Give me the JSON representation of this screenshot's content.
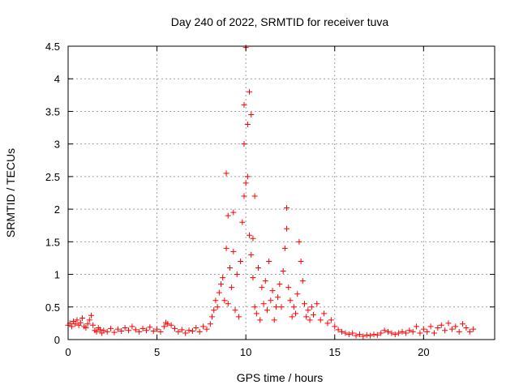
{
  "chart_data": {
    "type": "scatter",
    "title": "Day 240 of 2022, SRMTID for receiver tuva",
    "xlabel": "GPS time / hours",
    "ylabel": "SRMTID / TECUs",
    "xlim": [
      0,
      24
    ],
    "ylim": [
      0,
      4.5
    ],
    "x_ticks": [
      0,
      5,
      10,
      15,
      20
    ],
    "y_ticks": [
      0,
      0.5,
      1,
      1.5,
      2,
      2.5,
      3,
      3.5,
      4,
      4.5
    ],
    "x_tick_labels": [
      "0",
      "5",
      "10",
      "15",
      "20"
    ],
    "y_tick_labels": [
      "0",
      "0.5",
      "1",
      "1.5",
      "2",
      "2.5",
      "3",
      "3.5",
      "4",
      "4.5"
    ],
    "grid": true,
    "marker": "+",
    "series_color": "#ff0000",
    "series": [
      {
        "name": "SRMTID",
        "points": [
          [
            0.0,
            0.22
          ],
          [
            0.1,
            0.25
          ],
          [
            0.2,
            0.2
          ],
          [
            0.3,
            0.28
          ],
          [
            0.4,
            0.24
          ],
          [
            0.5,
            0.3
          ],
          [
            0.6,
            0.22
          ],
          [
            0.7,
            0.26
          ],
          [
            0.8,
            0.33
          ],
          [
            0.9,
            0.2
          ],
          [
            1.0,
            0.18
          ],
          [
            1.1,
            0.24
          ],
          [
            1.2,
            0.3
          ],
          [
            1.3,
            0.37
          ],
          [
            1.4,
            0.22
          ],
          [
            1.5,
            0.14
          ],
          [
            1.6,
            0.12
          ],
          [
            1.7,
            0.18
          ],
          [
            1.8,
            0.15
          ],
          [
            1.9,
            0.1
          ],
          [
            2.0,
            0.14
          ],
          [
            2.2,
            0.12
          ],
          [
            2.4,
            0.17
          ],
          [
            2.6,
            0.11
          ],
          [
            2.8,
            0.16
          ],
          [
            3.0,
            0.13
          ],
          [
            3.2,
            0.18
          ],
          [
            3.4,
            0.14
          ],
          [
            3.6,
            0.2
          ],
          [
            3.8,
            0.15
          ],
          [
            4.0,
            0.12
          ],
          [
            4.2,
            0.17
          ],
          [
            4.4,
            0.14
          ],
          [
            4.6,
            0.19
          ],
          [
            4.8,
            0.13
          ],
          [
            5.0,
            0.16
          ],
          [
            5.2,
            0.12
          ],
          [
            5.4,
            0.2
          ],
          [
            5.5,
            0.26
          ],
          [
            5.6,
            0.24
          ],
          [
            5.8,
            0.22
          ],
          [
            6.0,
            0.17
          ],
          [
            6.2,
            0.12
          ],
          [
            6.4,
            0.15
          ],
          [
            6.6,
            0.1
          ],
          [
            6.8,
            0.14
          ],
          [
            7.0,
            0.13
          ],
          [
            7.2,
            0.18
          ],
          [
            7.4,
            0.12
          ],
          [
            7.6,
            0.2
          ],
          [
            7.8,
            0.16
          ],
          [
            8.0,
            0.24
          ],
          [
            8.1,
            0.35
          ],
          [
            8.2,
            0.45
          ],
          [
            8.3,
            0.6
          ],
          [
            8.4,
            0.5
          ],
          [
            8.5,
            0.72
          ],
          [
            8.6,
            0.85
          ],
          [
            8.7,
            0.95
          ],
          [
            8.8,
            0.6
          ],
          [
            8.9,
            1.4
          ],
          [
            8.9,
            2.55
          ],
          [
            9.0,
            1.9
          ],
          [
            9.0,
            0.55
          ],
          [
            9.1,
            1.1
          ],
          [
            9.2,
            0.8
          ],
          [
            9.3,
            1.35
          ],
          [
            9.3,
            1.95
          ],
          [
            9.4,
            0.45
          ],
          [
            9.5,
            1.0
          ],
          [
            9.6,
            0.35
          ],
          [
            9.7,
            1.2
          ],
          [
            9.8,
            1.8
          ],
          [
            9.9,
            2.2
          ],
          [
            9.9,
            3.0
          ],
          [
            9.9,
            3.6
          ],
          [
            10.0,
            4.48
          ],
          [
            10.0,
            2.4
          ],
          [
            10.1,
            3.3
          ],
          [
            10.1,
            2.5
          ],
          [
            10.2,
            3.8
          ],
          [
            10.2,
            1.6
          ],
          [
            10.3,
            3.45
          ],
          [
            10.3,
            1.3
          ],
          [
            10.4,
            0.95
          ],
          [
            10.4,
            1.55
          ],
          [
            10.5,
            0.5
          ],
          [
            10.5,
            2.2
          ],
          [
            10.6,
            0.4
          ],
          [
            10.7,
            1.1
          ],
          [
            10.8,
            0.3
          ],
          [
            10.9,
            0.8
          ],
          [
            11.0,
            0.55
          ],
          [
            11.1,
            0.9
          ],
          [
            11.2,
            0.45
          ],
          [
            11.3,
            1.2
          ],
          [
            11.4,
            0.6
          ],
          [
            11.5,
            0.75
          ],
          [
            11.6,
            0.3
          ],
          [
            11.7,
            0.5
          ],
          [
            11.8,
            0.65
          ],
          [
            11.9,
            0.85
          ],
          [
            12.0,
            0.5
          ],
          [
            12.1,
            1.05
          ],
          [
            12.2,
            1.4
          ],
          [
            12.3,
            2.02
          ],
          [
            12.3,
            1.7
          ],
          [
            12.4,
            0.8
          ],
          [
            12.5,
            0.6
          ],
          [
            12.6,
            0.35
          ],
          [
            12.7,
            0.5
          ],
          [
            12.8,
            0.4
          ],
          [
            12.9,
            0.7
          ],
          [
            13.0,
            1.5
          ],
          [
            13.1,
            1.2
          ],
          [
            13.2,
            0.9
          ],
          [
            13.3,
            0.55
          ],
          [
            13.4,
            0.35
          ],
          [
            13.5,
            0.45
          ],
          [
            13.6,
            0.3
          ],
          [
            13.7,
            0.5
          ],
          [
            13.8,
            0.38
          ],
          [
            14.0,
            0.55
          ],
          [
            14.2,
            0.3
          ],
          [
            14.4,
            0.4
          ],
          [
            14.6,
            0.25
          ],
          [
            14.8,
            0.3
          ],
          [
            15.0,
            0.2
          ],
          [
            15.2,
            0.15
          ],
          [
            15.4,
            0.12
          ],
          [
            15.6,
            0.1
          ],
          [
            15.8,
            0.08
          ],
          [
            16.0,
            0.1
          ],
          [
            16.2,
            0.06
          ],
          [
            16.4,
            0.08
          ],
          [
            16.6,
            0.05
          ],
          [
            16.8,
            0.07
          ],
          [
            17.0,
            0.06
          ],
          [
            17.2,
            0.08
          ],
          [
            17.4,
            0.07
          ],
          [
            17.6,
            0.1
          ],
          [
            17.8,
            0.14
          ],
          [
            18.0,
            0.12
          ],
          [
            18.2,
            0.1
          ],
          [
            18.4,
            0.08
          ],
          [
            18.6,
            0.1
          ],
          [
            18.8,
            0.12
          ],
          [
            19.0,
            0.1
          ],
          [
            19.2,
            0.14
          ],
          [
            19.4,
            0.12
          ],
          [
            19.6,
            0.2
          ],
          [
            19.8,
            0.1
          ],
          [
            20.0,
            0.16
          ],
          [
            20.2,
            0.12
          ],
          [
            20.4,
            0.2
          ],
          [
            20.6,
            0.1
          ],
          [
            20.8,
            0.18
          ],
          [
            21.0,
            0.22
          ],
          [
            21.2,
            0.14
          ],
          [
            21.4,
            0.25
          ],
          [
            21.6,
            0.16
          ],
          [
            21.8,
            0.2
          ],
          [
            22.0,
            0.12
          ],
          [
            22.2,
            0.24
          ],
          [
            22.4,
            0.18
          ],
          [
            22.6,
            0.12
          ],
          [
            22.8,
            0.16
          ]
        ]
      }
    ]
  }
}
